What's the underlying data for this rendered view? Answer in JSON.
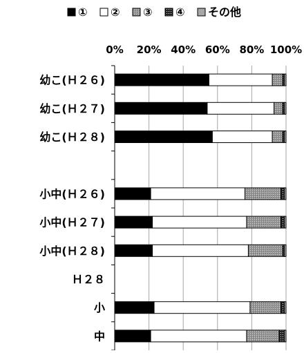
{
  "chart_data": {
    "type": "bar",
    "orientation": "horizontal",
    "stacked": "percent",
    "title": "",
    "xlabel": "",
    "ylabel": "",
    "xlim": [
      0,
      100
    ],
    "x_tick_labels": [
      "0%",
      "20%",
      "40%",
      "60%",
      "80%",
      "100%"
    ],
    "grid": true,
    "legend_position": "top",
    "categories": [
      "幼こ(Ｈ２６)",
      "幼こ(Ｈ２７)",
      "幼こ(Ｈ２８)",
      "",
      "小中(Ｈ２６)",
      "小中(Ｈ２７)",
      "小中(Ｈ２８)",
      "Ｈ２８",
      "小",
      "中"
    ],
    "series": [
      {
        "name": "①",
        "pattern": "solid",
        "color": "#000000",
        "values": [
          55,
          54,
          57,
          null,
          21,
          22,
          22,
          null,
          23,
          21
        ]
      },
      {
        "name": "②",
        "pattern": "white",
        "color": "#ffffff",
        "values": [
          37,
          39,
          35,
          null,
          55,
          55,
          56,
          null,
          56,
          56
        ]
      },
      {
        "name": "③",
        "pattern": "gray-dots",
        "color": "#999999",
        "values": [
          6,
          5,
          6,
          null,
          21,
          20,
          20,
          null,
          18,
          19
        ]
      },
      {
        "name": "④",
        "pattern": "dark-checker",
        "color": "#333333",
        "values": [
          1,
          1,
          1,
          null,
          2,
          2,
          1,
          null,
          2,
          3
        ]
      },
      {
        "name": "その他",
        "pattern": "light-checker",
        "color": "#bbbbbb",
        "values": [
          1,
          1,
          1,
          null,
          1,
          1,
          1,
          null,
          1,
          1
        ]
      }
    ]
  }
}
